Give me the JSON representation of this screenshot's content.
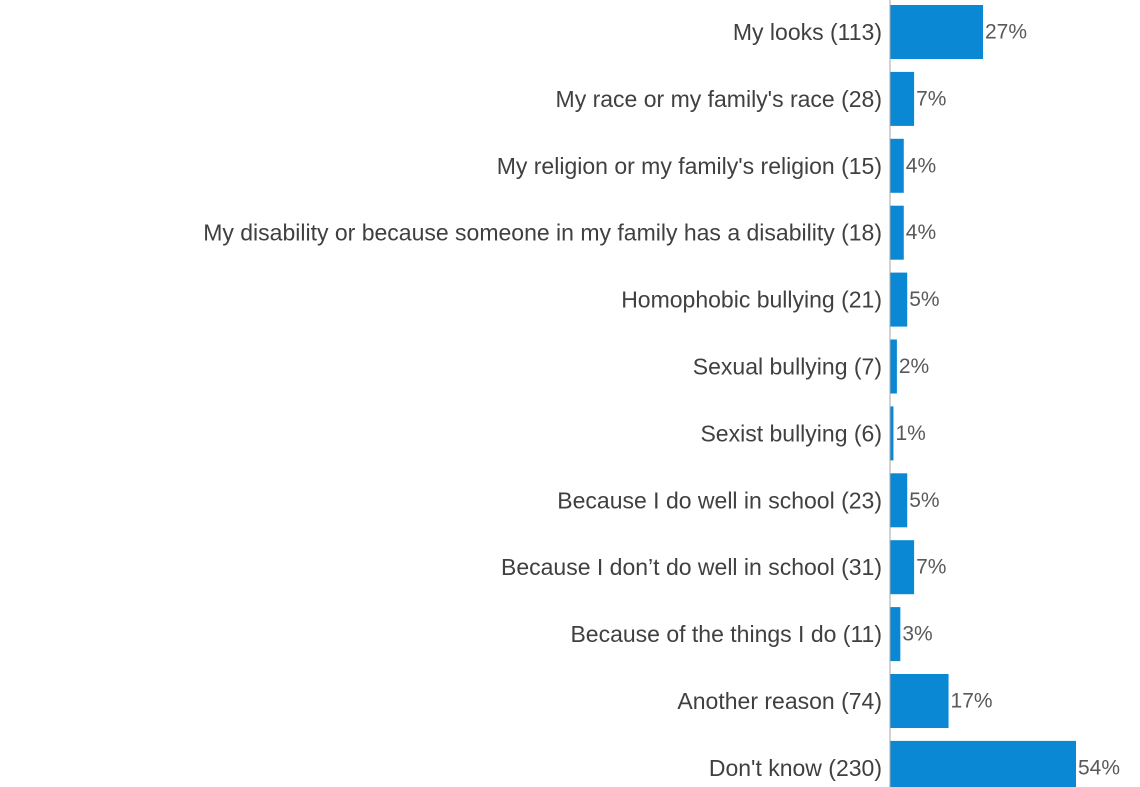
{
  "chart_data": {
    "type": "bar",
    "orientation": "horizontal",
    "categories": [
      "My looks  (113)",
      "My race or my family's race (28)",
      "My religion or my family's religion (15)",
      "My disability or because someone in my family has a disability (18)",
      "Homophobic bullying (21)",
      "Sexual bullying  (7)",
      "Sexist bullying  (6)",
      "Because I do well in school (23)",
      "Because I don’t do well in school (31)",
      "Because of the things I do  (11)",
      "Another reason (74)",
      "Don't know (230)"
    ],
    "values": [
      27,
      7,
      4,
      4,
      5,
      2,
      1,
      5,
      7,
      3,
      17,
      54
    ],
    "value_labels": [
      "27%",
      "7%",
      "4%",
      "4%",
      "5%",
      "2%",
      "1%",
      "5%",
      "7%",
      "3%",
      "17%",
      "54%"
    ],
    "unit": "%",
    "xlim": [
      0,
      54
    ],
    "grid": false,
    "legend": "none",
    "bar_color": "#0A88D4",
    "axis_color": "#A6A6A6"
  }
}
